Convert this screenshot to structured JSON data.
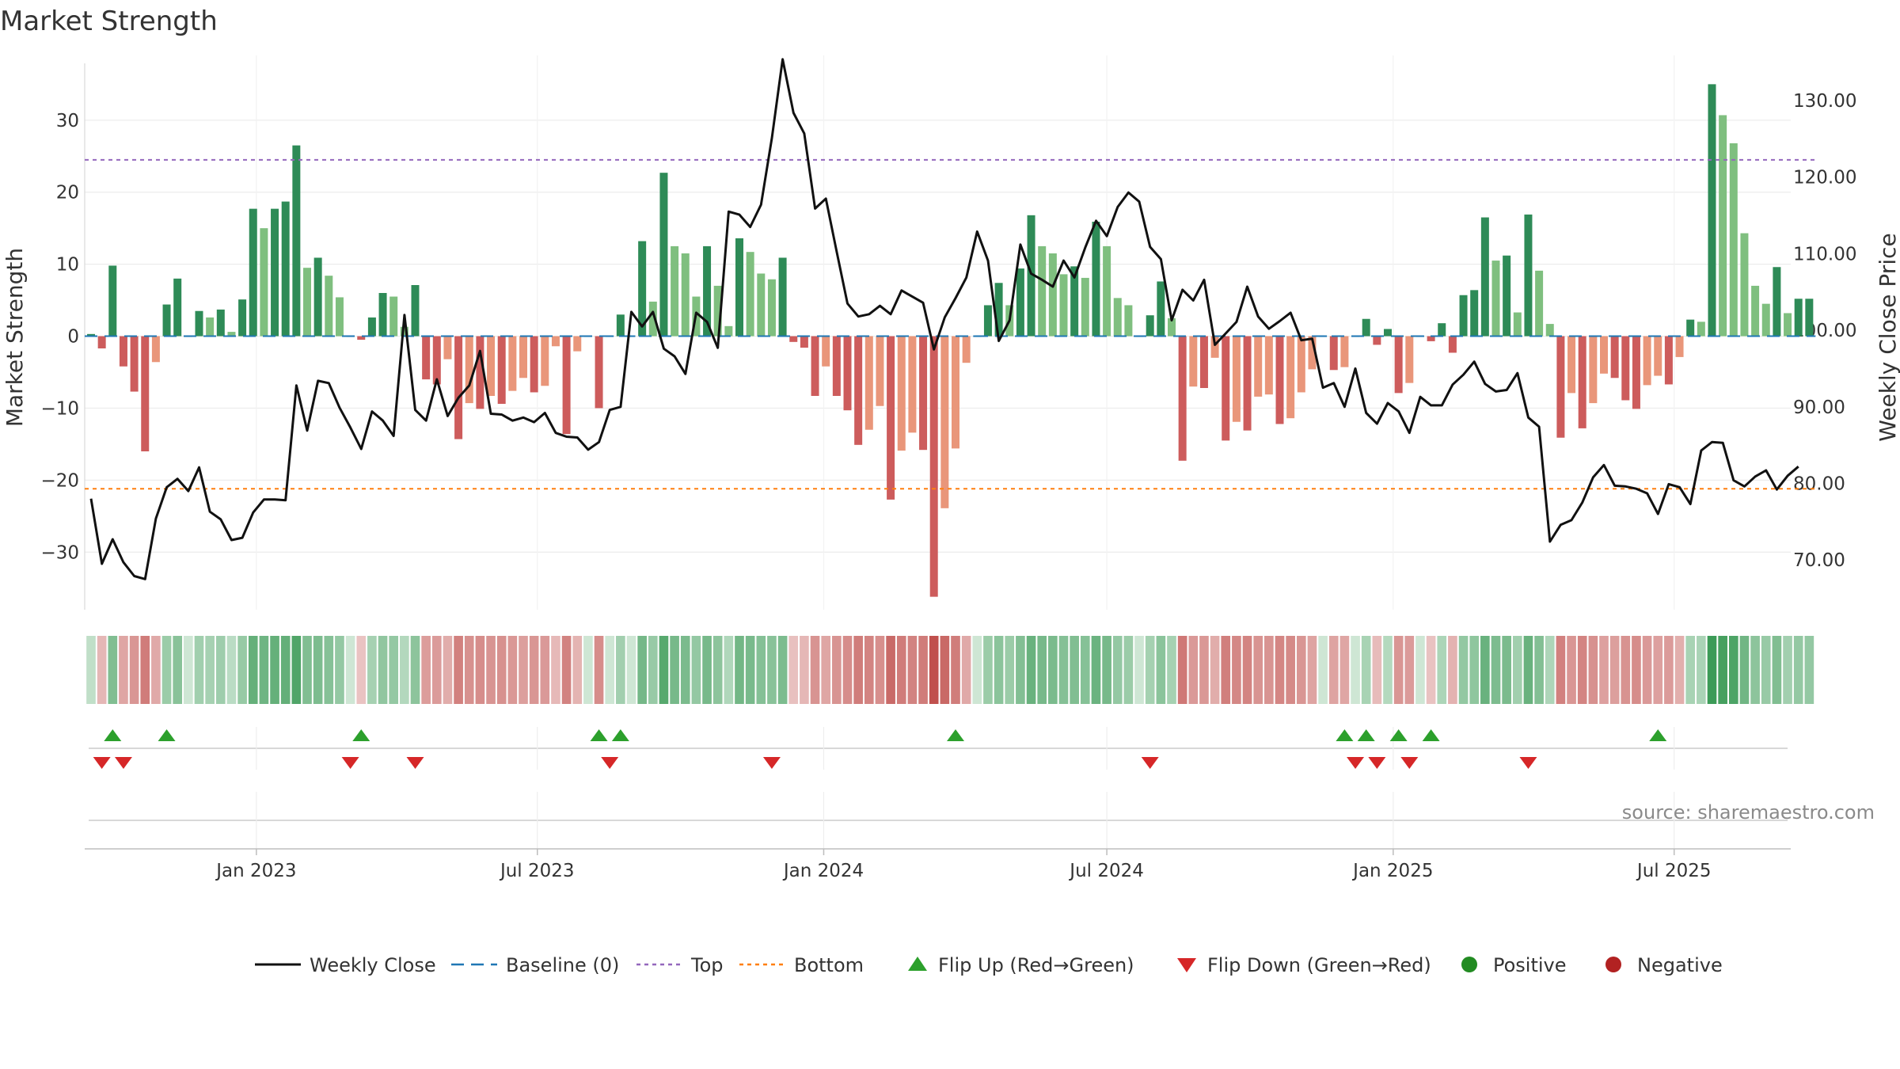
{
  "chart_data": {
    "type": "bar",
    "title": "Market Strength",
    "source": "source: sharemaestro.com",
    "y_left": {
      "label": "Market Strength",
      "range": [
        -38,
        39
      ],
      "ticks": [
        30,
        20,
        10,
        0,
        -10,
        -20,
        -30
      ],
      "tick_labels": [
        "30",
        "20",
        "10",
        "0",
        "−10",
        "−20",
        "−30"
      ]
    },
    "y_right": {
      "label": "Weekly Close Price",
      "range": [
        63.5,
        135.9
      ],
      "ticks": [
        130,
        120,
        110,
        100,
        90,
        80,
        70
      ],
      "tick_labels": [
        "130.00",
        "120.00",
        "110.00",
        "100.00",
        "90.00",
        "80.00",
        "70.00"
      ]
    },
    "x_axis": {
      "start_week": "2022-09-05",
      "weeks": 158,
      "tick_labels": [
        "Jan 2023",
        "Jul 2023",
        "Jan 2024",
        "Jul 2024",
        "Jan 2025",
        "Jul 2025"
      ],
      "tick_weeks": [
        15.3,
        41.3,
        67.8,
        94.0,
        120.5,
        146.5
      ]
    },
    "top_level": 24.5,
    "bottom_level": -21.2,
    "bars": [
      0.3,
      -1.7,
      9.8,
      -4.2,
      -7.7,
      -16.0,
      -3.6,
      4.4,
      8.0,
      0.0,
      3.5,
      2.6,
      3.7,
      0.6,
      5.1,
      17.7,
      15.0,
      17.7,
      18.7,
      26.5,
      9.5,
      10.9,
      8.4,
      5.4,
      0.0,
      -0.5,
      2.6,
      6.0,
      5.5,
      1.3,
      7.1,
      -6.0,
      -6.7,
      -3.2,
      -14.3,
      -9.3,
      -10.1,
      -8.3,
      -9.4,
      -7.6,
      -5.8,
      -7.8,
      -6.9,
      -1.4,
      -13.6,
      -2.1,
      0.0,
      -10.0,
      0.0,
      3.0,
      0.0,
      13.2,
      4.8,
      22.7,
      12.5,
      11.5,
      5.5,
      12.5,
      7.0,
      1.4,
      13.6,
      11.7,
      8.7,
      7.9,
      10.9,
      -0.8,
      -1.6,
      -8.3,
      -4.2,
      -8.3,
      -10.3,
      -15.1,
      -13.0,
      -9.7,
      -22.7,
      -15.9,
      -13.4,
      -15.8,
      -36.2,
      -23.9,
      -15.6,
      -3.7,
      0.0,
      4.3,
      7.4,
      4.3,
      9.4,
      16.8,
      12.5,
      11.5,
      8.6,
      9.7,
      8.1,
      15.9,
      12.5,
      5.3,
      4.3,
      0.0,
      2.9,
      7.6,
      2.5,
      -17.3,
      -7.0,
      -7.2,
      -3.0,
      -14.5,
      -11.9,
      -13.1,
      -8.4,
      -8.1,
      -12.2,
      -11.4,
      -7.8,
      -4.6,
      0.0,
      -4.7,
      -4.3,
      0.0,
      2.4,
      -1.2,
      1.0,
      -7.9,
      -6.5,
      0.0,
      -0.7,
      1.8,
      -2.3,
      5.7,
      6.4,
      16.5,
      10.5,
      11.2,
      3.3,
      16.9,
      9.1,
      1.7,
      -14.1,
      -7.9,
      -12.8,
      -9.3,
      -5.2,
      -5.8,
      -8.9,
      -10.1,
      -6.8,
      -5.5,
      -6.7,
      -2.9,
      2.3,
      2.0,
      35.0,
      30.7,
      26.8,
      14.3,
      7.0,
      4.5,
      9.6,
      3.2,
      5.2,
      5.2
    ],
    "weekly_close": [
      78.0,
      69.5,
      72.7,
      69.7,
      67.9,
      67.5,
      75.4,
      79.5,
      80.6,
      79.0,
      82.1,
      76.3,
      75.3,
      72.6,
      72.9,
      76.2,
      77.9,
      77.9,
      77.8,
      92.8,
      86.9,
      93.4,
      93.1,
      89.9,
      87.3,
      84.5,
      89.4,
      88.2,
      86.2,
      102.0,
      89.6,
      88.2,
      93.6,
      88.8,
      91.2,
      92.8,
      97.3,
      89.1,
      89.0,
      88.2,
      88.6,
      88.0,
      89.2,
      86.6,
      86.1,
      86.0,
      84.4,
      85.4,
      89.6,
      90.0,
      102.4,
      100.5,
      102.4,
      97.6,
      96.6,
      94.3,
      102.3,
      101.1,
      97.7,
      115.5,
      115.1,
      113.5,
      116.4,
      125.1,
      135.4,
      128.4,
      125.7,
      115.9,
      117.2,
      110.3,
      103.5,
      101.8,
      102.1,
      103.2,
      102.1,
      105.2,
      104.4,
      103.6,
      97.5,
      101.7,
      104.2,
      106.9,
      112.9,
      109.1,
      98.6,
      101.3,
      111.2,
      107.4,
      106.6,
      105.7,
      109.1,
      106.9,
      110.8,
      114.3,
      112.3,
      116.1,
      118.0,
      116.8,
      110.9,
      109.3,
      101.3,
      105.3,
      103.9,
      106.6,
      98.1,
      99.6,
      101.1,
      105.7,
      101.8,
      100.2,
      101.2,
      102.3,
      98.7,
      98.9,
      92.5,
      93.1,
      90.0,
      95.0,
      89.2,
      87.8,
      90.5,
      89.4,
      86.6,
      91.3,
      90.2,
      90.2,
      92.9,
      94.2,
      95.9,
      93.0,
      92.0,
      92.2,
      94.4,
      88.6,
      87.4,
      72.4,
      74.6,
      75.2,
      77.5,
      80.8,
      82.4,
      79.7,
      79.6,
      79.3,
      78.7,
      76.0,
      79.9,
      79.5,
      77.3,
      84.3,
      85.4,
      85.3,
      80.4,
      79.6,
      80.9,
      81.7,
      79.2,
      81.0,
      82.2
    ],
    "flip_up_weeks": [
      2,
      7,
      25,
      47,
      49,
      80,
      116,
      118,
      121,
      124,
      145
    ],
    "flip_down_weeks": [
      1,
      3,
      24,
      30,
      48,
      63,
      98,
      117,
      119,
      122,
      133
    ],
    "legend": [
      "Weekly Close",
      "Baseline (0)",
      "Top",
      "Bottom",
      "Flip Up (Red→Green)",
      "Flip Down (Green→Red)",
      "Positive",
      "Negative"
    ],
    "colors": {
      "pos_strong": "#2e8b57",
      "pos_light": "#7fbf7f",
      "neg_strong": "#cd5c5c",
      "neg_light": "#e9967a",
      "line": "#111111",
      "baseline": "#1f77b4",
      "top": "#9467bd",
      "bottom": "#ff7f0e",
      "flip_up": "#2ca02c",
      "flip_down": "#d62728",
      "positive_dot": "#228b22",
      "negative_dot": "#b22222"
    }
  }
}
